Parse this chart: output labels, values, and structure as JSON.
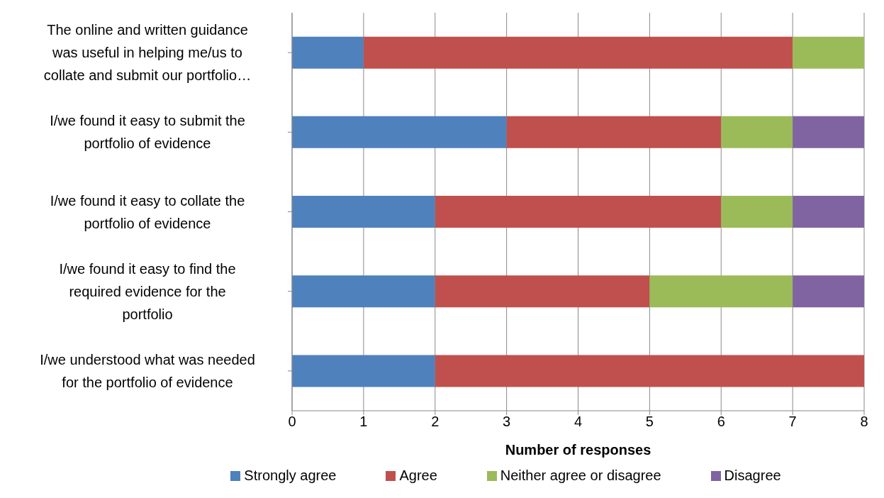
{
  "chart_data": {
    "type": "bar",
    "orientation": "horizontal",
    "stacked": true,
    "categories": [
      "The online and written guidance was useful in helping me/us to collate and submit our portfolio…",
      "I/we found it easy to submit the portfolio of evidence",
      "I/we found it easy to collate the portfolio of evidence",
      "I/we found it easy to find the required evidence for the portfolio",
      "I/we understood what was needed for the portfolio of evidence"
    ],
    "series": [
      {
        "name": "Strongly agree",
        "color": "#4f81bd",
        "values": [
          1,
          3,
          2,
          2,
          2
        ]
      },
      {
        "name": "Agree",
        "color": "#c0504d",
        "values": [
          6,
          3,
          4,
          3,
          6
        ]
      },
      {
        "name": "Neither agree or disagree",
        "color": "#9bbb59",
        "values": [
          1,
          1,
          1,
          2,
          0
        ]
      },
      {
        "name": "Disagree",
        "color": "#8064a2",
        "values": [
          0,
          1,
          1,
          1,
          0
        ]
      }
    ],
    "xlabel": "Number of responses",
    "xlim": [
      0,
      8
    ],
    "xticks": [
      0,
      1,
      2,
      3,
      4,
      5,
      6,
      7,
      8
    ],
    "grid": "x",
    "legend": "bottom"
  }
}
